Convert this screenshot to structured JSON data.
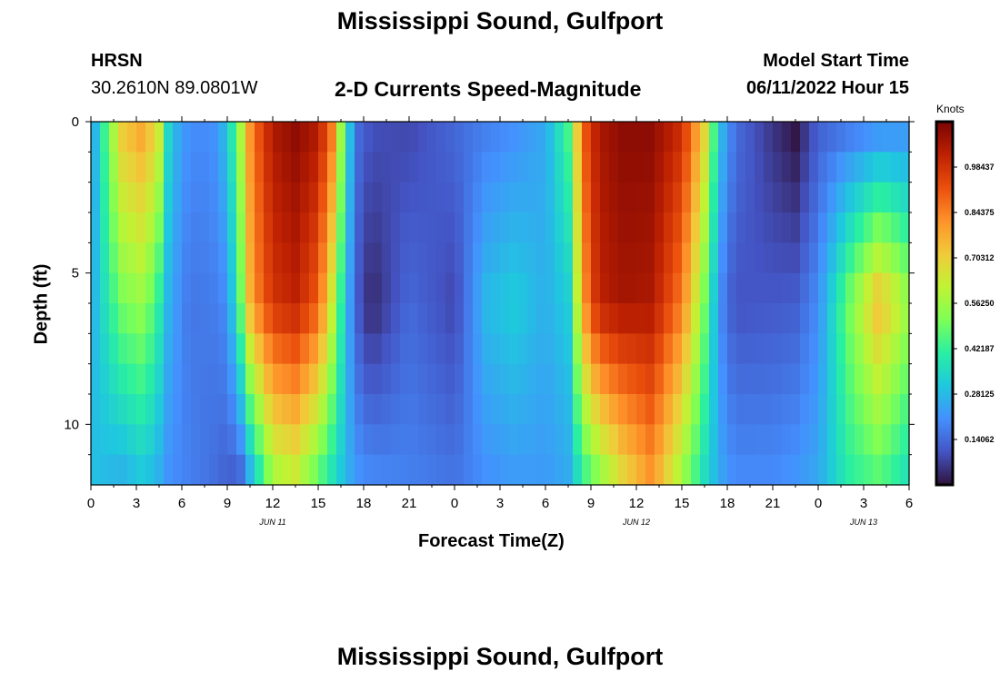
{
  "header": {
    "title": "Mississippi Sound, Gulfport",
    "station_id": "HRSN",
    "coordinates": "30.2610N  89.0801W",
    "subtitle": "2-D Currents Speed-Magnitude",
    "model_start_label": "Model Start Time",
    "model_start_value": "06/11/2022 Hour 15"
  },
  "footer": {
    "repeated_title": "Mississippi Sound, Gulfport"
  },
  "chart_data": {
    "type": "heatmap",
    "title": "Mississippi Sound, Gulfport",
    "subtitle": "2-D Currents Speed-Magnitude",
    "xlabel": "Forecast Time(Z)",
    "ylabel": "Depth (ft)",
    "x_unit": "hours (Z)",
    "x_range_hours": [
      0,
      54
    ],
    "x_tick_labels": [
      "0",
      "3",
      "6",
      "9",
      "12",
      "15",
      "18",
      "21",
      "0",
      "3",
      "6",
      "9",
      "12",
      "15",
      "18",
      "21",
      "0",
      "3",
      "6"
    ],
    "date_labels": [
      {
        "label": "JUN 11",
        "hour": 12
      },
      {
        "label": "JUN 12",
        "hour": 36
      },
      {
        "label": "JUN 13",
        "hour": 51
      }
    ],
    "y_tick_labels": [
      "0",
      "5",
      "10"
    ],
    "ylim_ft": [
      0,
      12
    ],
    "y_inverted": true,
    "colorbar": {
      "units_label": "Knots",
      "range": [
        0,
        1.125
      ],
      "tick_values": [
        0.140625,
        0.28125,
        0.421875,
        0.5625,
        0.703125,
        0.84375,
        0.984375
      ],
      "tick_labels": [
        "0.14062",
        "0.28125",
        "0.42187",
        "0.56250",
        "0.70312",
        "0.84375",
        "0.98437"
      ]
    },
    "colormap": [
      "#30123b",
      "#4454c4",
      "#4490fe",
      "#1fc8de",
      "#29efa2",
      "#7dff56",
      "#c1f334",
      "#f1ca3a",
      "#fe922a",
      "#ea4f0d",
      "#be2102",
      "#7a0403"
    ],
    "profile_hours": [
      0,
      2,
      3.5,
      4.5,
      5.2,
      6.5,
      8,
      9,
      9.8,
      10.6,
      12,
      13.5,
      15,
      16,
      16.8,
      17.5,
      18.5,
      21,
      24,
      26,
      28,
      30,
      31.5,
      32.5,
      33.5,
      35,
      37,
      39,
      40.5,
      41.5,
      42.5,
      45,
      46.5,
      48,
      50,
      52,
      54
    ],
    "depths_ft": [
      0,
      6,
      12
    ],
    "speed_profiles_knots": [
      [
        0.2,
        0.25,
        0.3
      ],
      [
        0.72,
        0.5,
        0.25
      ],
      [
        0.8,
        0.55,
        0.3
      ],
      [
        0.65,
        0.4,
        0.25
      ],
      [
        0.3,
        0.25,
        0.2
      ],
      [
        0.2,
        0.16,
        0.18
      ],
      [
        0.2,
        0.17,
        0.15
      ],
      [
        0.3,
        0.2,
        0.12
      ],
      [
        0.55,
        0.45,
        0.1
      ],
      [
        0.85,
        0.8,
        0.25
      ],
      [
        1.05,
        0.98,
        0.55
      ],
      [
        1.1,
        1.02,
        0.6
      ],
      [
        1.05,
        0.9,
        0.45
      ],
      [
        0.85,
        0.6,
        0.35
      ],
      [
        0.4,
        0.3,
        0.28
      ],
      [
        0.15,
        0.12,
        0.22
      ],
      [
        0.1,
        0.03,
        0.2
      ],
      [
        0.08,
        0.14,
        0.18
      ],
      [
        0.14,
        0.08,
        0.16
      ],
      [
        0.17,
        0.28,
        0.2
      ],
      [
        0.2,
        0.32,
        0.22
      ],
      [
        0.25,
        0.26,
        0.22
      ],
      [
        0.45,
        0.32,
        0.25
      ],
      [
        0.9,
        0.8,
        0.4
      ],
      [
        1.05,
        1.02,
        0.5
      ],
      [
        1.1,
        1.06,
        0.65
      ],
      [
        1.1,
        1.05,
        0.8
      ],
      [
        1.0,
        0.85,
        0.55
      ],
      [
        0.7,
        0.5,
        0.35
      ],
      [
        0.3,
        0.2,
        0.25
      ],
      [
        0.15,
        0.1,
        0.2
      ],
      [
        0.05,
        0.11,
        0.2
      ],
      [
        0.0,
        0.12,
        0.22
      ],
      [
        0.12,
        0.2,
        0.25
      ],
      [
        0.15,
        0.5,
        0.4
      ],
      [
        0.18,
        0.75,
        0.45
      ],
      [
        0.2,
        0.55,
        0.35
      ]
    ]
  }
}
